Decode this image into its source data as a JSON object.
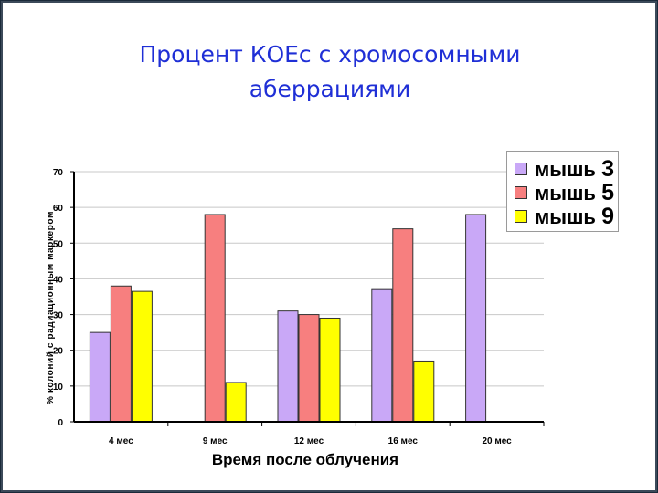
{
  "slide": {
    "title_line1": "Процент КОЕс с хромосомными",
    "title_line2": "аберрациями"
  },
  "colors": {
    "title": "#1f2fd6",
    "mouse3": "#c9a8f7",
    "mouse5": "#f77f7f",
    "mouse9": "#ffff00",
    "grid": "#c8c8c8"
  },
  "chart_data": {
    "type": "bar",
    "categories": [
      "4 мес",
      "9 мес",
      "12 мес",
      "16 мес",
      "20 мес"
    ],
    "series": [
      {
        "name": "мышь 3",
        "values": [
          25,
          null,
          31,
          37,
          58
        ]
      },
      {
        "name": "мышь 5",
        "values": [
          38,
          58,
          30,
          54,
          null
        ]
      },
      {
        "name": "мышь 9",
        "values": [
          36.5,
          11,
          29,
          17,
          null
        ]
      }
    ],
    "yticks": [
      "0",
      "10",
      "20",
      "30",
      "40",
      "50",
      "60",
      "70"
    ],
    "ylim": [
      0,
      70
    ],
    "xlabel": "Время после облучения",
    "ylabel": "% колоний с радиационным маркером",
    "grid": true,
    "legend_position": "top-right"
  },
  "legend": {
    "items": [
      {
        "word": "мышь",
        "num": "3"
      },
      {
        "word": "мышь",
        "num": "5"
      },
      {
        "word": "мышь",
        "num": "9"
      }
    ]
  }
}
